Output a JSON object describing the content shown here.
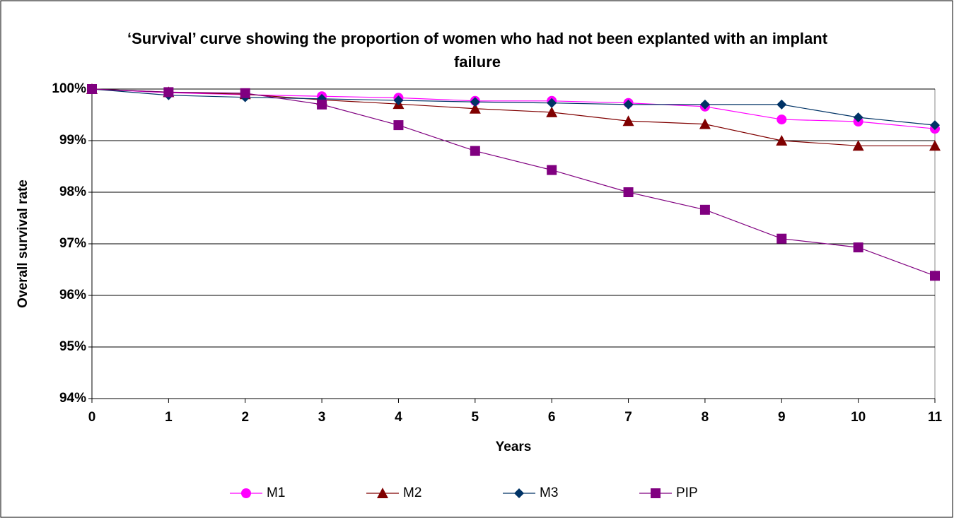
{
  "chart_data": {
    "type": "line",
    "title": "‘Survival’ curve showing the proportion of women who had not been explanted with an implant failure",
    "x_label": "Years",
    "y_label": "Overall survival rate",
    "x": [
      0,
      1,
      2,
      3,
      4,
      5,
      6,
      7,
      8,
      9,
      10,
      11
    ],
    "xlim": [
      0,
      11
    ],
    "xticks": [
      0,
      1,
      2,
      3,
      4,
      5,
      6,
      7,
      8,
      9,
      10,
      11
    ],
    "ylim": [
      94,
      100
    ],
    "yticks": [
      {
        "value": 94,
        "label": "94%"
      },
      {
        "value": 95,
        "label": "95%"
      },
      {
        "value": 96,
        "label": "96%"
      },
      {
        "value": 97,
        "label": "97%"
      },
      {
        "value": 98,
        "label": "98%"
      },
      {
        "value": 99,
        "label": "99%"
      },
      {
        "value": 100,
        "label": "100%"
      }
    ],
    "grid": true,
    "legend": "bottom",
    "series": [
      {
        "name": "M1",
        "color": "#ff00ff",
        "marker": "circle",
        "values": [
          100,
          99.93,
          99.89,
          99.86,
          99.83,
          99.77,
          99.77,
          99.73,
          99.66,
          99.41,
          99.37,
          99.23
        ]
      },
      {
        "name": "M2",
        "color": "#800000",
        "marker": "triangle",
        "values": [
          100,
          99.94,
          99.9,
          99.79,
          99.71,
          99.62,
          99.55,
          99.38,
          99.32,
          99.0,
          98.9,
          98.9
        ]
      },
      {
        "name": "M3",
        "color": "#003366",
        "marker": "diamond",
        "values": [
          100,
          99.88,
          99.84,
          99.81,
          99.78,
          99.75,
          99.73,
          99.7,
          99.7,
          99.7,
          99.45,
          99.3
        ]
      },
      {
        "name": "PIP",
        "color": "#800080",
        "marker": "square",
        "values": [
          100,
          99.94,
          99.92,
          99.7,
          99.3,
          98.8,
          98.43,
          98.0,
          97.66,
          97.1,
          96.93,
          96.38
        ]
      }
    ]
  }
}
